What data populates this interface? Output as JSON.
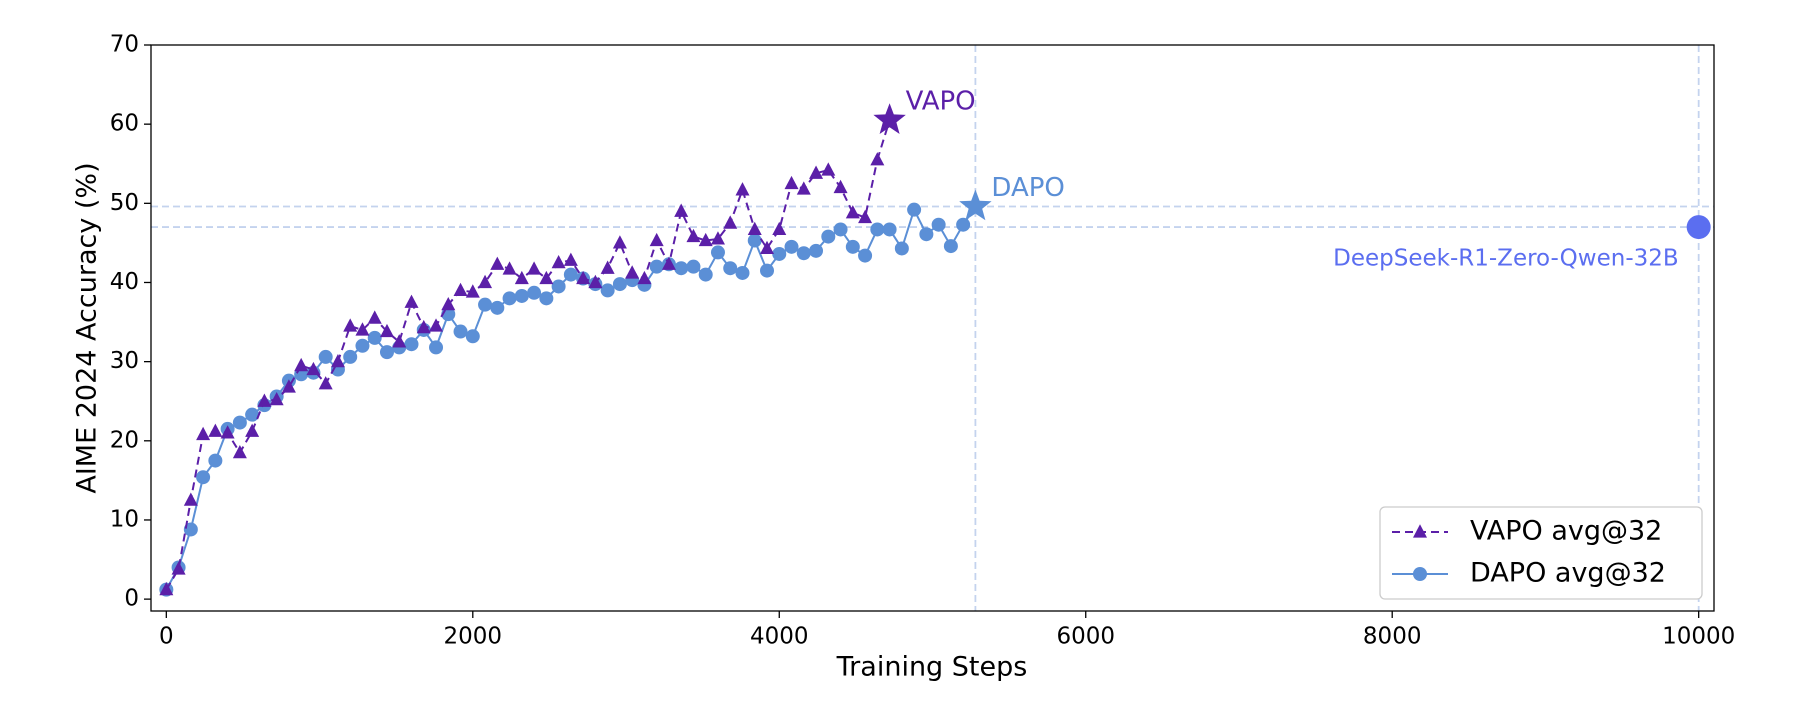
{
  "chart_data": {
    "type": "line",
    "xlabel": "Training Steps",
    "ylabel": "AIME 2024 Accuracy (%)",
    "xlim": [
      -100,
      10100
    ],
    "ylim": [
      -1.5,
      70
    ],
    "xticks": [
      0,
      2000,
      4000,
      6000,
      8000,
      10000
    ],
    "yticks": [
      0,
      10,
      20,
      30,
      40,
      50,
      60,
      70
    ],
    "legend": "lower right",
    "series": [
      {
        "name": "VAPO avg@32",
        "color": "#5b1fa8",
        "linestyle": "dashed",
        "marker": "triangle",
        "x": [
          0,
          80,
          160,
          240,
          320,
          400,
          480,
          560,
          640,
          720,
          800,
          880,
          960,
          1040,
          1120,
          1200,
          1280,
          1360,
          1440,
          1520,
          1600,
          1680,
          1760,
          1840,
          1920,
          2000,
          2080,
          2160,
          2240,
          2320,
          2400,
          2480,
          2560,
          2640,
          2720,
          2800,
          2880,
          2960,
          3040,
          3120,
          3200,
          3280,
          3360,
          3440,
          3520,
          3600,
          3680,
          3760,
          3840,
          3920,
          4000,
          4080,
          4160,
          4240,
          4320,
          4400,
          4480,
          4560,
          4640
        ],
        "values": [
          1.2,
          3.8,
          12.5,
          20.8,
          21.2,
          21,
          18.5,
          21.2,
          25,
          25.2,
          26.8,
          29.5,
          29,
          27.2,
          30,
          34.5,
          34,
          35.5,
          33.8,
          32.5,
          37.5,
          34.3,
          34.5,
          37.2,
          39,
          38.8,
          40,
          42.3,
          41.7,
          40.5,
          41.7,
          40.5,
          42.5,
          42.8,
          40.5,
          40,
          41.8,
          45,
          41.2,
          40.5,
          45.3,
          42.3,
          49,
          45.8,
          45.3,
          45.5,
          47.5,
          51.7,
          46.7,
          44.3,
          46.7,
          52.5,
          51.8,
          53.8,
          54.2,
          52,
          48.8,
          48.2,
          55.5
        ]
      },
      {
        "name": "DAPO avg@32",
        "color": "#5b8fd6",
        "linestyle": "solid",
        "marker": "circle",
        "x": [
          0,
          80,
          160,
          240,
          320,
          400,
          480,
          560,
          640,
          720,
          800,
          880,
          960,
          1040,
          1120,
          1200,
          1280,
          1360,
          1440,
          1520,
          1600,
          1680,
          1760,
          1840,
          1920,
          2000,
          2080,
          2160,
          2240,
          2320,
          2400,
          2480,
          2560,
          2640,
          2720,
          2800,
          2880,
          2960,
          3040,
          3120,
          3200,
          3280,
          3360,
          3440,
          3520,
          3600,
          3680,
          3760,
          3840,
          3920,
          4000,
          4080,
          4160,
          4240,
          4320,
          4400,
          4480,
          4560,
          4640,
          4720,
          4800,
          4880,
          4960,
          5040,
          5120,
          5200
        ],
        "values": [
          1.2,
          4,
          8.8,
          15.4,
          17.5,
          21.5,
          22.3,
          23.3,
          24.5,
          25.6,
          27.6,
          28.4,
          28.6,
          30.6,
          29,
          30.6,
          32,
          33,
          31.2,
          31.8,
          32.2,
          34,
          31.8,
          36,
          33.8,
          33.2,
          37.2,
          36.8,
          38,
          38.3,
          38.7,
          38,
          39.5,
          41,
          40.5,
          39.8,
          39,
          39.8,
          40.3,
          39.7,
          42,
          42.3,
          41.8,
          42,
          41,
          43.8,
          41.8,
          41.2,
          45.3,
          41.5,
          43.6,
          44.5,
          43.7,
          44,
          45.8,
          46.7,
          44.5,
          43.4,
          46.7,
          46.7,
          44.3,
          49.2,
          46.1,
          47.3,
          44.6,
          47.3
        ]
      }
    ],
    "annotations": [
      {
        "text": "VAPO",
        "x": 4720,
        "y": 60.5,
        "marker": "star",
        "color": "#5b1fa8",
        "guides": false
      },
      {
        "text": "DAPO",
        "x": 5280,
        "y": 49.6,
        "marker": "star",
        "color": "#5b8fd6",
        "guides": true
      },
      {
        "text": "DeepSeek-R1-Zero-Qwen-32B",
        "x": 10000,
        "y": 47,
        "marker": "circle",
        "color": "#5b6ef0",
        "guides": true
      }
    ]
  }
}
